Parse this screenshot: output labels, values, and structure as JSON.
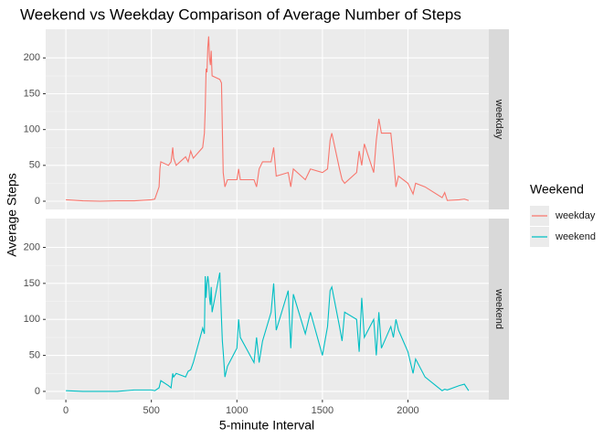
{
  "chart_data": {
    "type": "line",
    "facet": true,
    "title": "Weekend vs Weekday Comparison of Average Number of Steps",
    "xlabel": "5-minute Interval",
    "ylabel": "Average Steps",
    "legend_title": "Weekend",
    "legend": "right",
    "grid": true,
    "xlim": [
      -118,
      2473
    ],
    "xticks": [
      0,
      500,
      1000,
      1500,
      2000
    ],
    "ylim": [
      -11.5,
      240
    ],
    "yticks": [
      0,
      50,
      100,
      150,
      200
    ],
    "x": [
      0,
      100,
      200,
      300,
      400,
      500,
      520,
      545,
      550,
      555,
      600,
      615,
      625,
      630,
      645,
      700,
      715,
      730,
      745,
      800,
      810,
      815,
      820,
      825,
      830,
      835,
      840,
      845,
      850,
      855,
      900,
      910,
      915,
      920,
      930,
      945,
      1000,
      1010,
      1020,
      1100,
      1115,
      1130,
      1150,
      1200,
      1215,
      1230,
      1300,
      1315,
      1330,
      1400,
      1430,
      1500,
      1530,
      1545,
      1555,
      1600,
      1615,
      1630,
      1700,
      1715,
      1730,
      1745,
      1800,
      1815,
      1830,
      1845,
      1900,
      1915,
      1930,
      1945,
      2000,
      2030,
      2045,
      2100,
      2200,
      2215,
      2230,
      2300,
      2330,
      2355
    ],
    "series": [
      {
        "name": "weekday",
        "color": "#f8766d",
        "values": [
          2,
          0.5,
          0,
          0.5,
          0.5,
          2,
          3,
          20,
          45,
          55,
          50,
          55,
          75,
          60,
          50,
          62,
          55,
          70,
          60,
          75,
          95,
          130,
          185,
          180,
          215,
          230,
          200,
          190,
          210,
          175,
          170,
          165,
          100,
          40,
          20,
          30,
          30,
          45,
          30,
          30,
          20,
          45,
          55,
          55,
          75,
          35,
          40,
          20,
          45,
          30,
          45,
          40,
          45,
          85,
          95,
          45,
          30,
          25,
          40,
          70,
          50,
          80,
          40,
          85,
          115,
          95,
          95,
          60,
          20,
          35,
          25,
          10,
          25,
          20,
          5,
          12,
          1,
          2,
          3,
          1
        ]
      },
      {
        "name": "weekend",
        "color": "#00bfc4",
        "values": [
          1,
          0,
          0,
          0,
          2,
          2,
          1,
          5,
          10,
          15,
          8,
          5,
          25,
          20,
          25,
          20,
          28,
          30,
          40,
          88,
          80,
          160,
          130,
          150,
          160,
          150,
          130,
          120,
          145,
          110,
          165,
          100,
          70,
          55,
          20,
          35,
          60,
          100,
          75,
          40,
          75,
          40,
          70,
          110,
          150,
          85,
          140,
          60,
          135,
          80,
          110,
          50,
          90,
          140,
          145,
          90,
          70,
          110,
          100,
          55,
          130,
          75,
          100,
          50,
          110,
          60,
          90,
          75,
          100,
          85,
          55,
          25,
          45,
          20,
          1,
          3,
          2,
          8,
          10,
          1
        ]
      }
    ]
  }
}
